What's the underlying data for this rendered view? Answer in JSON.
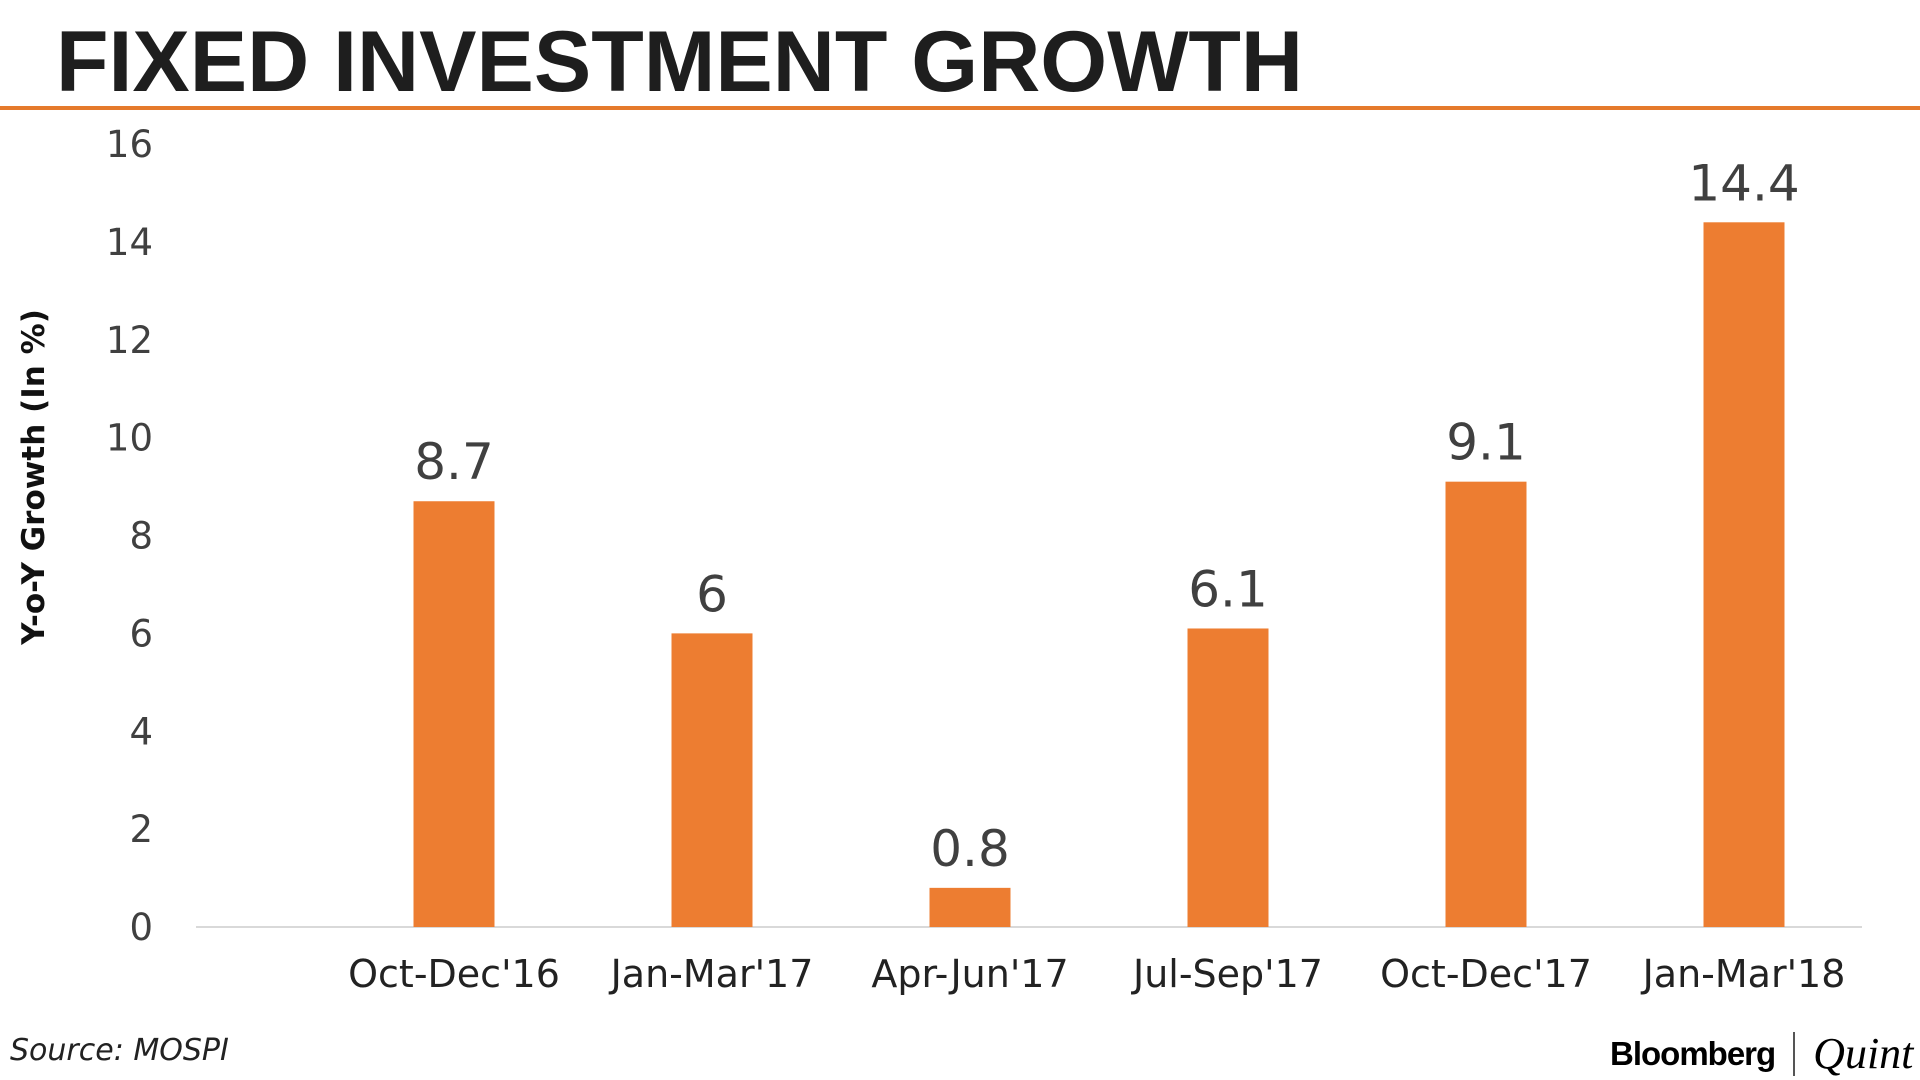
{
  "title": "FIXED INVESTMENT GROWTH",
  "source": "Source: MOSPI",
  "logo": {
    "brand": "Bloomberg",
    "sub": "Quint"
  },
  "colors": {
    "bar": "#ED7D31",
    "rule": "#E57A2B",
    "text": "#404040"
  },
  "chart_data": {
    "type": "bar",
    "title": "FIXED INVESTMENT GROWTH",
    "xlabel": "",
    "ylabel": "Y-o-Y Growth (In %)",
    "ylim": [
      0,
      16
    ],
    "yticks": [
      0,
      2,
      4,
      6,
      8,
      10,
      12,
      14,
      16
    ],
    "grid": false,
    "legend": "none",
    "categories": [
      "Oct-Dec'16",
      "Jan-Mar'17",
      "Apr-Jun'17",
      "Jul-Sep'17",
      "Oct-Dec'17",
      "Jan-Mar'18"
    ],
    "values": [
      8.7,
      6,
      0.8,
      6.1,
      9.1,
      14.4
    ],
    "data_labels": [
      "8.7",
      "6",
      "0.8",
      "6.1",
      "9.1",
      "14.4"
    ]
  }
}
